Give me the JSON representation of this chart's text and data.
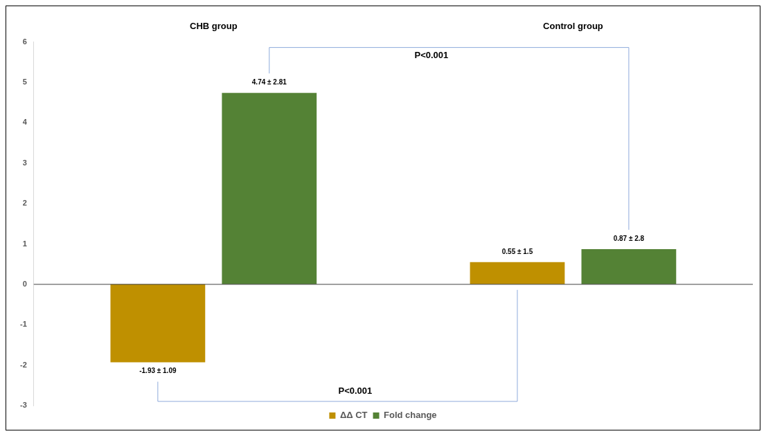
{
  "chart_data": {
    "type": "bar",
    "categories": [
      "CHB group",
      "Control group"
    ],
    "series": [
      {
        "name": "ΔΔ CT",
        "color": "#bf9000",
        "values": [
          -1.93,
          0.55
        ],
        "value_labels": [
          "-1.93 ± 1.09",
          "0.55 ± 1.5"
        ]
      },
      {
        "name": "Fold change",
        "color": "#548235",
        "values": [
          4.74,
          0.87
        ],
        "value_labels": [
          "4.74 ± 2.81",
          "0.87 ± 2.8"
        ]
      }
    ],
    "ylim": [
      -3,
      6
    ],
    "yticks": [
      -3,
      -2,
      -1,
      0,
      1,
      2,
      3,
      4,
      5,
      6
    ],
    "ref_lines": [
      {
        "axis": "y",
        "value": 0,
        "color": "#404040"
      }
    ],
    "legend": "bottom",
    "annotations": [
      "P<0.001",
      "P<0.001"
    ]
  }
}
